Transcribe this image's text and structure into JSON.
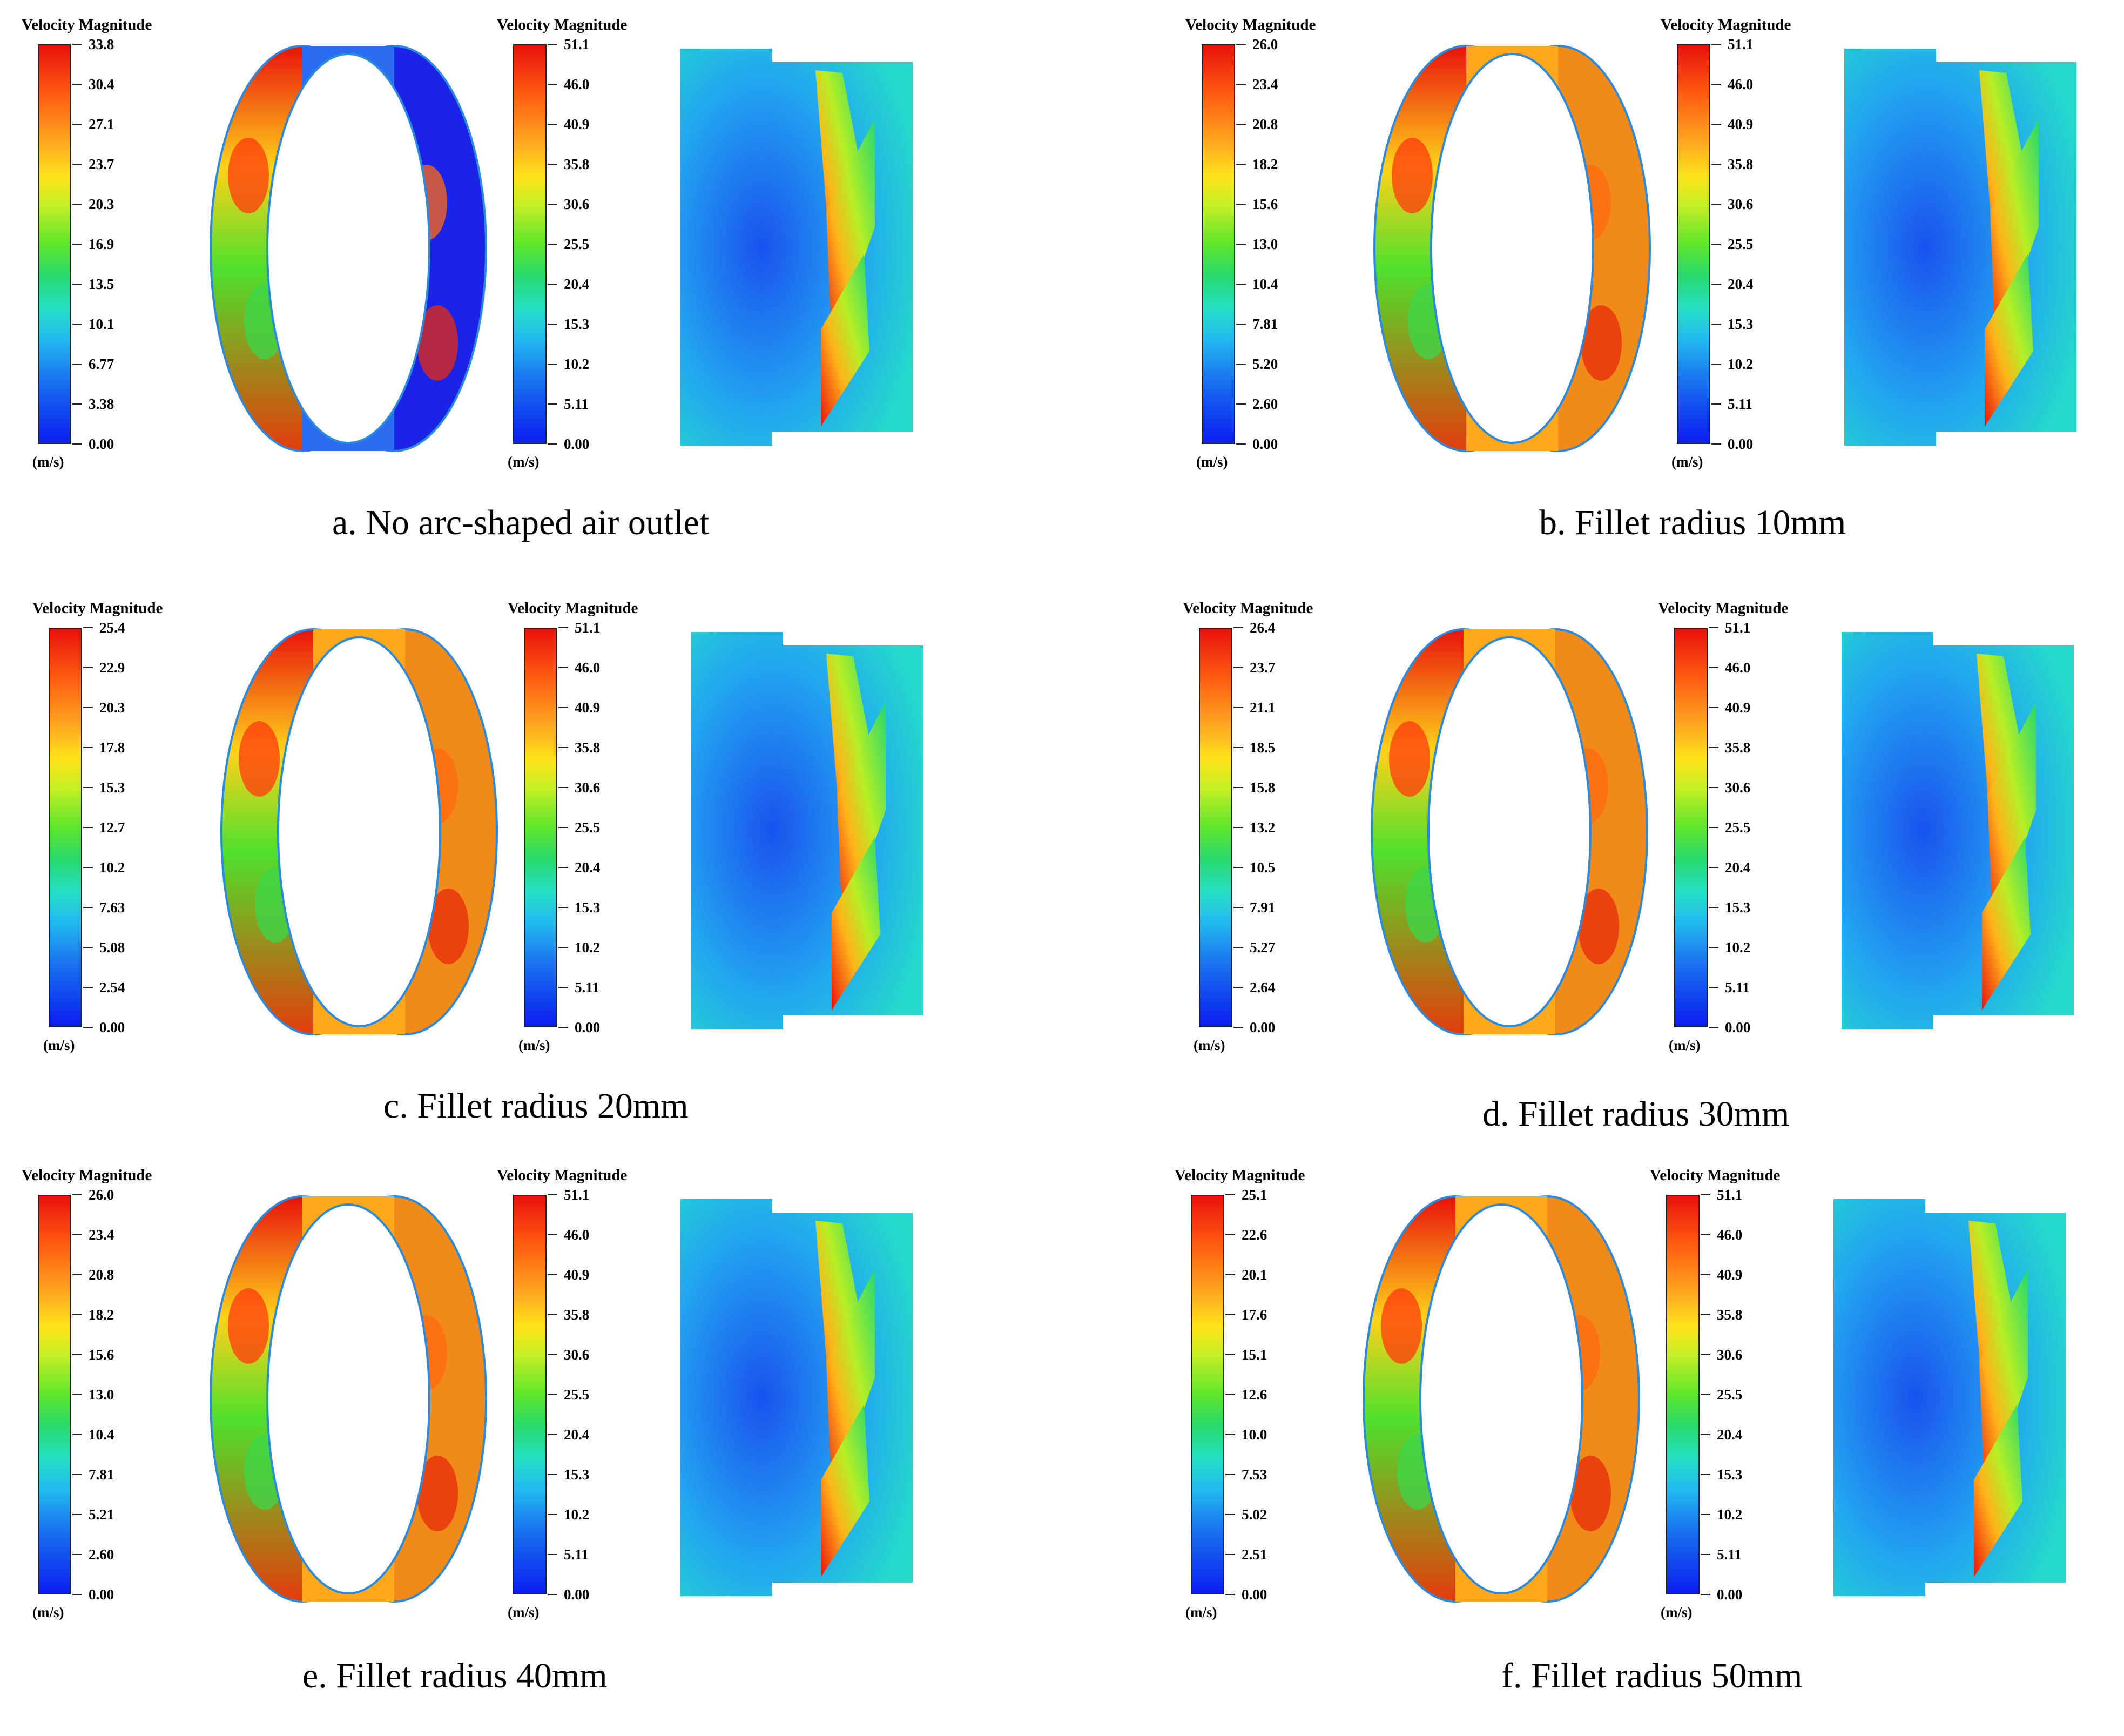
{
  "panels": [
    {
      "caption": "a. No arc-shaped air outlet",
      "ring_legend": {
        "title": "Velocity Magnitude",
        "unit": "(m/s)",
        "ticks": [
          "33.8",
          "30.4",
          "27.1",
          "23.7",
          "20.3",
          "16.9",
          "13.5",
          "10.1",
          "6.77",
          "3.38",
          "0.00"
        ]
      },
      "blade_legend": {
        "title": "Velocity Magnitude",
        "unit": "(m/s)",
        "ticks": [
          "51.1",
          "46.0",
          "40.9",
          "35.8",
          "30.6",
          "25.5",
          "20.4",
          "15.3",
          "10.2",
          "5.11",
          "0.00"
        ]
      }
    },
    {
      "caption": "b. Fillet radius 10mm",
      "ring_legend": {
        "title": "Velocity Magnitude",
        "unit": "(m/s)",
        "ticks": [
          "26.0",
          "23.4",
          "20.8",
          "18.2",
          "15.6",
          "13.0",
          "10.4",
          "7.81",
          "5.20",
          "2.60",
          "0.00"
        ]
      },
      "blade_legend": {
        "title": "Velocity Magnitude",
        "unit": "(m/s)",
        "ticks": [
          "51.1",
          "46.0",
          "40.9",
          "35.8",
          "30.6",
          "25.5",
          "20.4",
          "15.3",
          "10.2",
          "5.11",
          "0.00"
        ]
      }
    },
    {
      "caption": "c. Fillet radius 20mm",
      "ring_legend": {
        "title": "Velocity Magnitude",
        "unit": "(m/s)",
        "ticks": [
          "25.4",
          "22.9",
          "20.3",
          "17.8",
          "15.3",
          "12.7",
          "10.2",
          "7.63",
          "5.08",
          "2.54",
          "0.00"
        ]
      },
      "blade_legend": {
        "title": "Velocity Magnitude",
        "unit": "(m/s)",
        "ticks": [
          "51.1",
          "46.0",
          "40.9",
          "35.8",
          "30.6",
          "25.5",
          "20.4",
          "15.3",
          "10.2",
          "5.11",
          "0.00"
        ]
      }
    },
    {
      "caption": "d. Fillet radius 30mm",
      "ring_legend": {
        "title": "Velocity Magnitude",
        "unit": "(m/s)",
        "ticks": [
          "26.4",
          "23.7",
          "21.1",
          "18.5",
          "15.8",
          "13.2",
          "10.5",
          "7.91",
          "5.27",
          "2.64",
          "0.00"
        ]
      },
      "blade_legend": {
        "title": "Velocity Magnitude",
        "unit": "(m/s)",
        "ticks": [
          "51.1",
          "46.0",
          "40.9",
          "35.8",
          "30.6",
          "25.5",
          "20.4",
          "15.3",
          "10.2",
          "5.11",
          "0.00"
        ]
      }
    },
    {
      "caption": "e. Fillet radius 40mm",
      "ring_legend": {
        "title": "Velocity Magnitude",
        "unit": "(m/s)",
        "ticks": [
          "26.0",
          "23.4",
          "20.8",
          "18.2",
          "15.6",
          "13.0",
          "10.4",
          "7.81",
          "5.21",
          "2.60",
          "0.00"
        ]
      },
      "blade_legend": {
        "title": "Velocity Magnitude",
        "unit": "(m/s)",
        "ticks": [
          "51.1",
          "46.0",
          "40.9",
          "35.8",
          "30.6",
          "25.5",
          "20.4",
          "15.3",
          "10.2",
          "5.11",
          "0.00"
        ]
      }
    },
    {
      "caption": "f. Fillet radius 50mm",
      "ring_legend": {
        "title": "Velocity Magnitude",
        "unit": "(m/s)",
        "ticks": [
          "25.1",
          "22.6",
          "20.1",
          "17.6",
          "15.1",
          "12.6",
          "10.0",
          "7.53",
          "5.02",
          "2.51",
          "0.00"
        ]
      },
      "blade_legend": {
        "title": "Velocity Magnitude",
        "unit": "(m/s)",
        "ticks": [
          "51.1",
          "46.0",
          "40.9",
          "35.8",
          "30.6",
          "25.5",
          "20.4",
          "15.3",
          "10.2",
          "5.11",
          "0.00"
        ]
      }
    }
  ]
}
